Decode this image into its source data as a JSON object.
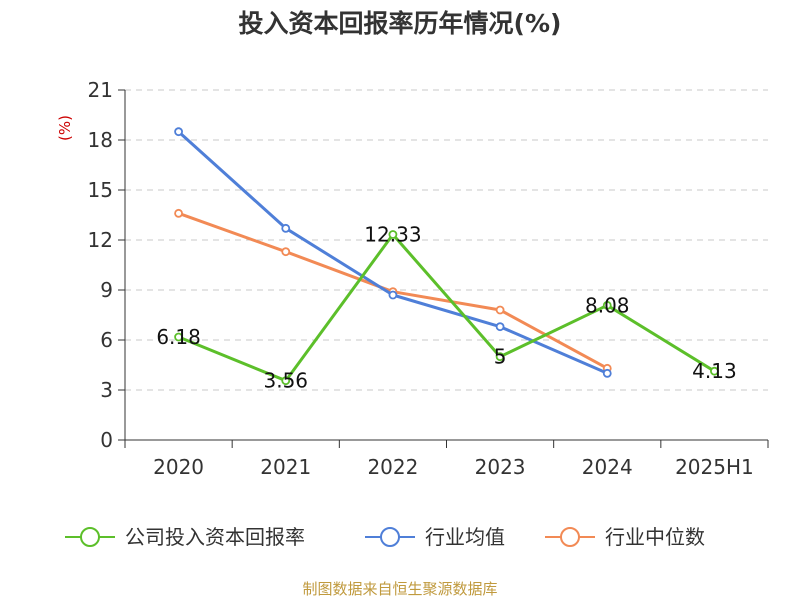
{
  "chart_data": {
    "type": "line",
    "title": "投入资本回报率历年情况(%)",
    "ylabel": "(%)",
    "categories": [
      "2020",
      "2021",
      "2022",
      "2023",
      "2024",
      "2025H1"
    ],
    "ylim": [
      0,
      21
    ],
    "yticks": [
      0,
      3,
      6,
      9,
      12,
      15,
      18,
      21
    ],
    "grid": true,
    "legend_position": "bottom",
    "series": [
      {
        "name": "公司投入资本回报率",
        "color": "#5cbf2a",
        "values": [
          6.18,
          3.56,
          12.33,
          5,
          8.08,
          4.13
        ],
        "labels": [
          "6.18",
          "3.56",
          "12.33",
          "5",
          "8.08",
          "4.13"
        ]
      },
      {
        "name": "行业均值",
        "color": "#4f7fd8",
        "values": [
          18.5,
          12.7,
          8.7,
          6.8,
          4.0,
          null
        ]
      },
      {
        "name": "行业中位数",
        "color": "#f28a55",
        "values": [
          13.6,
          11.3,
          8.9,
          7.8,
          4.3,
          null
        ]
      }
    ],
    "source": "制图数据来自恒生聚源数据库"
  }
}
